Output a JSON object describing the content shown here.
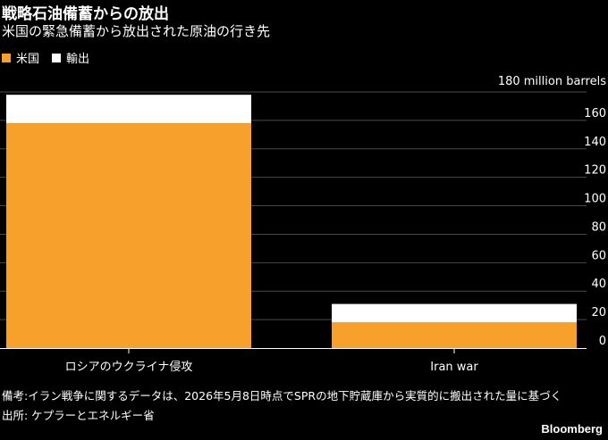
{
  "colors": {
    "background": "#000000",
    "us": "#f7a02c",
    "export": "#ffffff",
    "grid": "#4a4a4a",
    "text": "#ffffff"
  },
  "chart_data": {
    "type": "bar",
    "stacked": true,
    "title": "戦略石油備蓄からの放出",
    "subtitle": "米国の緊急備蓄から放出された原油の行き先",
    "categories": [
      "ロシアのウクライナ侵攻",
      "Iran war"
    ],
    "series": [
      {
        "name": "米国",
        "color": "#f7a02c",
        "values": [
          158,
          18
        ]
      },
      {
        "name": "輸出",
        "color": "#ffffff",
        "values": [
          20,
          13
        ]
      }
    ],
    "y_unit_label": "180 million barrels",
    "yticks": [
      0,
      20,
      40,
      60,
      80,
      100,
      120,
      140,
      160
    ],
    "ylim": [
      0,
      180
    ],
    "grid": true,
    "legend_position": "top-left",
    "axis_position": "right"
  },
  "footnote": "備考:イラン戦争に関するデータは、2026年5月8日時点でSPRの地下貯蔵庫から実質的に搬出された量に基づく",
  "source": "出所: ケプラーとエネルギー省",
  "brand": "Bloomberg"
}
